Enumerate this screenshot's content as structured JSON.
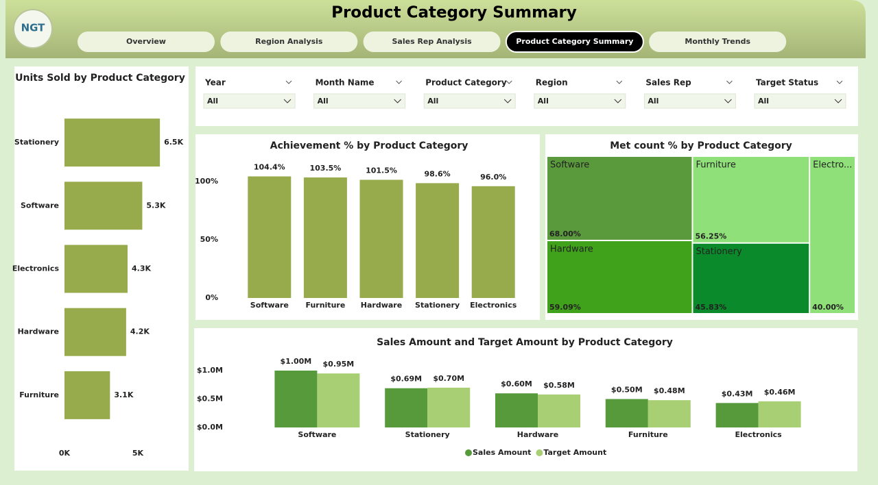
{
  "header": {
    "title": "Product Category Summary",
    "logo": "NGT"
  },
  "tabs": [
    "Overview",
    "Region Analysis",
    "Sales Rep Analysis",
    "Product Category Summary",
    "Monthly Trends"
  ],
  "active_tab": 3,
  "filters": [
    {
      "label": "Year",
      "value": "All"
    },
    {
      "label": "Month Name",
      "value": "All"
    },
    {
      "label": "Product Category",
      "value": "All"
    },
    {
      "label": "Region",
      "value": "All"
    },
    {
      "label": "Sales Rep",
      "value": "All"
    },
    {
      "label": "Target Status",
      "value": "All"
    }
  ],
  "chart_data": [
    {
      "type": "barh",
      "title": "Units Sold by Product Category",
      "categories": [
        "Stationery",
        "Software",
        "Electronics",
        "Hardware",
        "Furniture"
      ],
      "values": [
        6500,
        5300,
        4300,
        4200,
        3100
      ],
      "value_labels": [
        "6.5K",
        "5.3K",
        "4.3K",
        "4.2K",
        "3.1K"
      ],
      "color": "#97ab4d",
      "xlim": [
        0,
        7000
      ],
      "xticks": [
        {
          "value": 0,
          "label": "0K"
        },
        {
          "value": 5000,
          "label": "5K"
        }
      ]
    },
    {
      "type": "bar",
      "title": "Achievement % by Product Category",
      "categories": [
        "Software",
        "Furniture",
        "Hardware",
        "Stationery",
        "Electronics"
      ],
      "values": [
        104.4,
        103.5,
        101.5,
        98.6,
        96.0
      ],
      "value_labels": [
        "104.4%",
        "103.5%",
        "101.5%",
        "98.6%",
        "96.0%"
      ],
      "color": "#97ab4d",
      "ylim": [
        0,
        110
      ],
      "yticks": [
        {
          "value": 0,
          "label": "0%"
        },
        {
          "value": 50,
          "label": "50%"
        },
        {
          "value": 100,
          "label": "100%"
        }
      ]
    },
    {
      "type": "treemap",
      "title": "Met count % by Product Category",
      "categories": [
        "Software",
        "Hardware",
        "Furniture",
        "Stationery",
        "Electro..."
      ],
      "values": [
        68.0,
        59.09,
        56.25,
        45.83,
        40.0
      ],
      "value_labels": [
        "68.00%",
        "59.09%",
        "56.25%",
        "45.83%",
        "40.00%"
      ],
      "colors": [
        "#5a9a3c",
        "#3fa21a",
        "#90e07a",
        "#0a8a2a",
        "#90e07a"
      ]
    },
    {
      "type": "bar",
      "title": "Sales Amount and Target Amount by Product Category",
      "categories": [
        "Software",
        "Stationery",
        "Hardware",
        "Furniture",
        "Electronics"
      ],
      "series": [
        {
          "name": "Sales Amount",
          "color": "#579a3c",
          "values": [
            1000000,
            690000,
            600000,
            500000,
            430000
          ],
          "value_labels": [
            "$1.00M",
            "$0.69M",
            "$0.60M",
            "$0.50M",
            "$0.43M"
          ]
        },
        {
          "name": "Target Amount",
          "color": "#a9cf74",
          "values": [
            950000,
            700000,
            580000,
            480000,
            460000
          ],
          "value_labels": [
            "$0.95M",
            "$0.70M",
            "$0.58M",
            "$0.48M",
            "$0.46M"
          ]
        }
      ],
      "ylim": [
        0,
        1100000
      ],
      "yticks": [
        {
          "value": 0,
          "label": "$0.0M"
        },
        {
          "value": 500000,
          "label": "$0.5M"
        },
        {
          "value": 1000000,
          "label": "$1.0M"
        }
      ],
      "legend": "bottom"
    }
  ]
}
